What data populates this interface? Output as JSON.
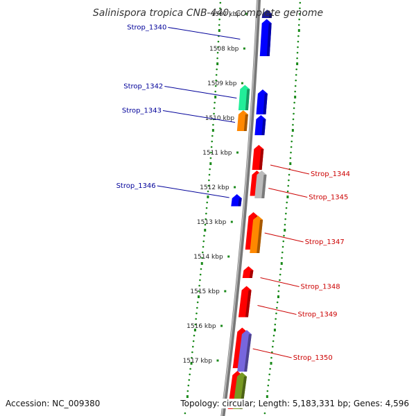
{
  "title": "Salinispora tropica CNB-440, complete genome",
  "accession": "Accession: NC_009380",
  "topology": "Topology: circular; Length: 5,183,331 bp; Genes: 4,596",
  "ticks": [
    {
      "label": "1507 kbp",
      "pos": 1507
    },
    {
      "label": "1508 kbp",
      "pos": 1508
    },
    {
      "label": "1509 kbp",
      "pos": 1509
    },
    {
      "label": "1510 kbp",
      "pos": 1510
    },
    {
      "label": "1511 kbp",
      "pos": 1511
    },
    {
      "label": "1512 kbp",
      "pos": 1512
    },
    {
      "label": "1513 kbp",
      "pos": 1513
    },
    {
      "label": "1514 kbp",
      "pos": 1514
    },
    {
      "label": "1515 kbp",
      "pos": 1515
    },
    {
      "label": "1516 kbp",
      "pos": 1516
    },
    {
      "label": "1517 kbp",
      "pos": 1517
    }
  ],
  "genes": [
    {
      "start": 1506.88,
      "end": 1507.12,
      "strand": "+",
      "track": 1,
      "color": "#1a1a9a"
    },
    {
      "start": 1507.15,
      "end": 1508.22,
      "strand": "+",
      "track": 1,
      "color": "#0000ff"
    },
    {
      "start": 1509.05,
      "end": 1509.78,
      "strand": "-",
      "track": 2,
      "color": "#22ee99"
    },
    {
      "start": 1509.78,
      "end": 1510.38,
      "strand": "-",
      "track": 2,
      "color": "#ff8800"
    },
    {
      "start": 1509.18,
      "end": 1509.9,
      "strand": "+",
      "track": 1,
      "color": "#0000ff"
    },
    {
      "start": 1509.92,
      "end": 1510.5,
      "strand": "+",
      "track": 1,
      "color": "#0000ff"
    },
    {
      "start": 1510.78,
      "end": 1511.5,
      "strand": "+",
      "track": 1,
      "color": "#ff0000"
    },
    {
      "start": 1511.52,
      "end": 1512.25,
      "strand": "+",
      "track": 1,
      "color": "#ff0000"
    },
    {
      "start": 1511.52,
      "end": 1512.32,
      "strand": "+",
      "track": 2,
      "color": "#bbbbbb"
    },
    {
      "start": 1512.2,
      "end": 1512.55,
      "strand": "-",
      "track": 2,
      "color": "#0000ff"
    },
    {
      "start": 1512.72,
      "end": 1513.8,
      "strand": "+",
      "track": 1,
      "color": "#ff0000"
    },
    {
      "start": 1512.82,
      "end": 1513.9,
      "strand": "+",
      "track": 2,
      "color": "#ff8800"
    },
    {
      "start": 1514.28,
      "end": 1514.62,
      "strand": "+",
      "track": 1,
      "color": "#ff0000"
    },
    {
      "start": 1514.85,
      "end": 1515.75,
      "strand": "+",
      "track": 1,
      "color": "#ff0000"
    },
    {
      "start": 1516.05,
      "end": 1517.22,
      "strand": "+",
      "track": 1,
      "color": "#ff0000"
    },
    {
      "start": 1516.12,
      "end": 1517.32,
      "strand": "+",
      "track": 2,
      "color": "#7766dd"
    },
    {
      "start": 1517.3,
      "end": 1518.4,
      "strand": "+",
      "track": 1,
      "color": "#ff0000"
    },
    {
      "start": 1517.34,
      "end": 1518.4,
      "strand": "+",
      "track": 2,
      "color": "#779922"
    }
  ],
  "labels": [
    {
      "text": "Strop_1340",
      "pos": 1507.65,
      "side": "left",
      "color": "#000099"
    },
    {
      "text": "Strop_1342",
      "pos": 1509.35,
      "side": "left",
      "color": "#000099"
    },
    {
      "text": "Strop_1343",
      "pos": 1510.05,
      "side": "left",
      "color": "#000099"
    },
    {
      "text": "Strop_1346",
      "pos": 1512.22,
      "side": "left",
      "color": "#000099"
    },
    {
      "text": "Strop_1344",
      "pos": 1511.4,
      "side": "right",
      "color": "#cc0000"
    },
    {
      "text": "Strop_1345",
      "pos": 1512.07,
      "side": "right",
      "color": "#cc0000"
    },
    {
      "text": "Strop_1347",
      "pos": 1513.36,
      "side": "right",
      "color": "#cc0000"
    },
    {
      "text": "Strop_1348",
      "pos": 1514.65,
      "side": "right",
      "color": "#cc0000"
    },
    {
      "text": "Strop_1349",
      "pos": 1515.45,
      "side": "right",
      "color": "#cc0000"
    },
    {
      "text": "Strop_1350",
      "pos": 1516.7,
      "side": "right",
      "color": "#cc0000"
    }
  ]
}
